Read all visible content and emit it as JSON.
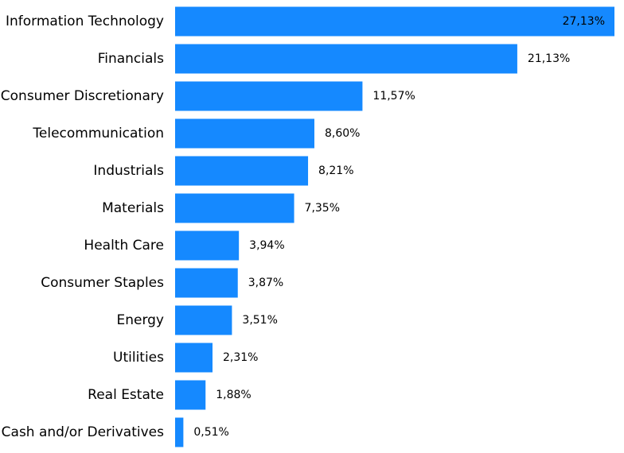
{
  "chart_data": {
    "type": "bar",
    "orientation": "horizontal",
    "title": "",
    "xlabel": "",
    "ylabel": "",
    "xlim": [
      0,
      27.13
    ],
    "grid": false,
    "legend": "none",
    "bar_color": "#1589FF",
    "categories": [
      "Information Technology",
      "Financials",
      "Consumer Discretionary",
      "Telecommunication",
      "Industrials",
      "Materials",
      "Health Care",
      "Consumer Staples",
      "Energy",
      "Utilities",
      "Real Estate",
      "Cash and/or Derivatives"
    ],
    "values": [
      27.13,
      21.13,
      11.57,
      8.6,
      8.21,
      7.35,
      3.94,
      3.87,
      3.51,
      2.31,
      1.88,
      0.51
    ],
    "value_labels": [
      "27,13%",
      "21,13%",
      "11,57%",
      "8,60%",
      "8,21%",
      "7,35%",
      "3,94%",
      "3,87%",
      "3,51%",
      "2,31%",
      "1,88%",
      "0,51%"
    ]
  }
}
